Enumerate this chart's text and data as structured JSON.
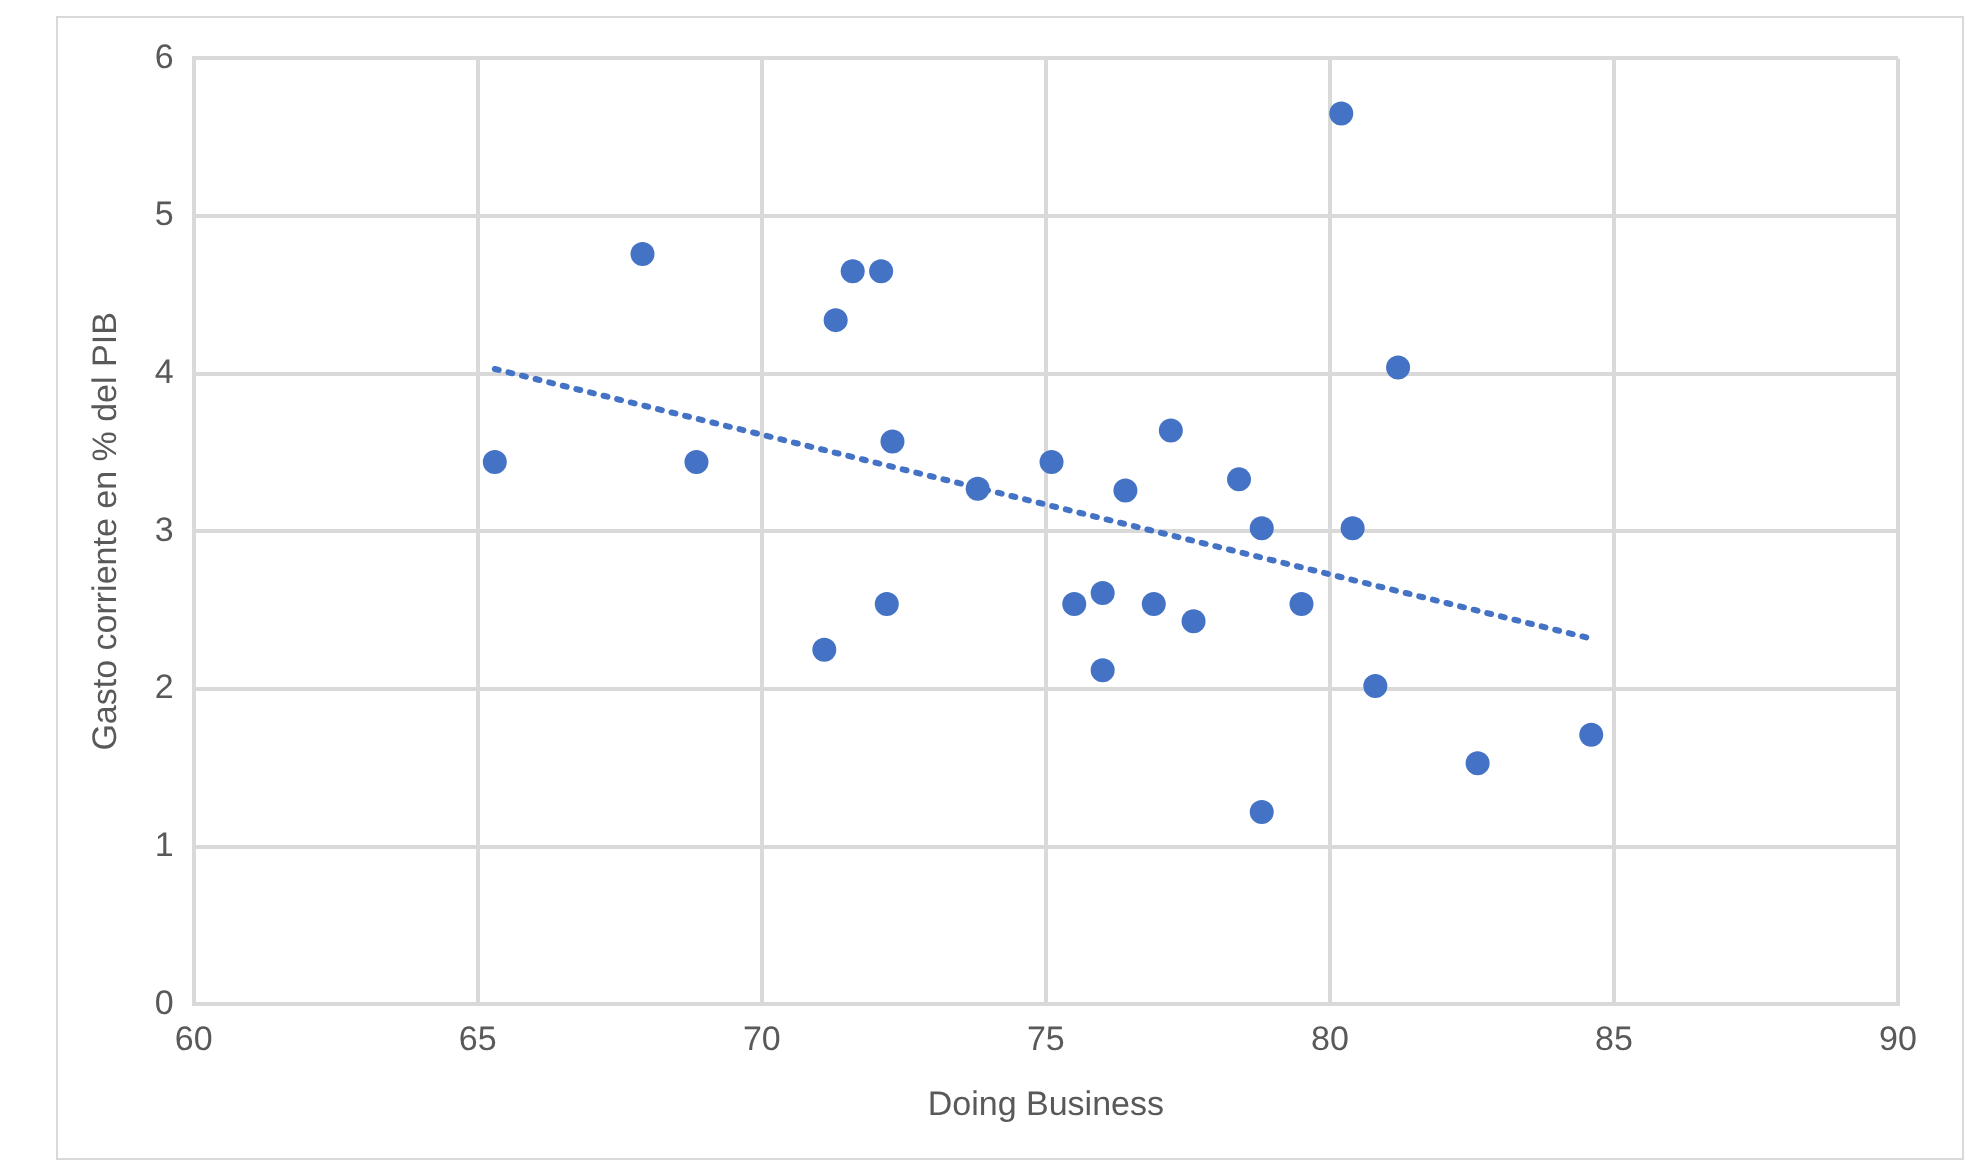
{
  "chart_data": {
    "type": "scatter",
    "xlabel": "Doing Business",
    "ylabel": "Gasto corriente en % del PIB",
    "xlim": [
      60,
      90
    ],
    "xticks": [
      60,
      65,
      70,
      75,
      80,
      85,
      90
    ],
    "ylim": [
      0,
      6
    ],
    "yticks": [
      0,
      1,
      2,
      3,
      4,
      5,
      6
    ],
    "grid": true,
    "legend": false,
    "marker": "circle",
    "series": [
      {
        "color": "#4472c4",
        "x": [
          65.3,
          67.9,
          68.85,
          71.1,
          71.3,
          71.6,
          72.1,
          72.3,
          72.2,
          73.8,
          75.1,
          75.5,
          76.0,
          76.0,
          76.4,
          76.9,
          77.2,
          77.6,
          78.4,
          78.8,
          78.8,
          79.5,
          80.2,
          80.4,
          80.8,
          81.2,
          82.6,
          84.6
        ],
        "values": [
          3.44,
          4.76,
          3.44,
          2.25,
          4.34,
          4.65,
          4.65,
          3.57,
          2.54,
          3.27,
          3.44,
          2.54,
          2.61,
          2.12,
          3.26,
          2.54,
          3.64,
          2.43,
          3.33,
          3.02,
          1.22,
          2.54,
          5.65,
          3.02,
          2.02,
          4.04,
          1.53,
          1.71
        ]
      },
      {
        "type": "line",
        "color": "#4472c4",
        "line_style": "dotted",
        "marker": "none",
        "x": [
          65.3,
          84.6
        ],
        "values": [
          4.03,
          2.32
        ]
      }
    ]
  }
}
